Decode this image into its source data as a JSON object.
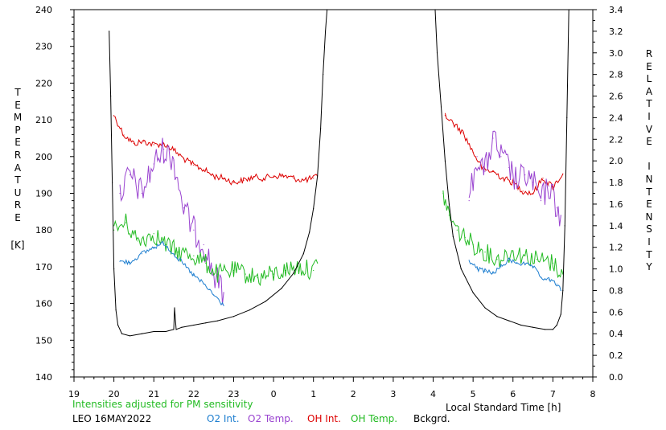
{
  "chart_data": {
    "type": "line",
    "y_left": {
      "label": "TEMPERATURE",
      "unit": "[K]",
      "range": [
        140,
        240
      ],
      "ticks": [
        "140",
        "150",
        "160",
        "170",
        "180",
        "190",
        "200",
        "210",
        "220",
        "230",
        "240"
      ]
    },
    "y_right": {
      "label": "RELATIVE INTENSITY",
      "range": [
        0.0,
        3.4
      ],
      "ticks": [
        "0.0",
        "0.2",
        "0.4",
        "0.6",
        "0.8",
        "1.0",
        "1.2",
        "1.4",
        "1.6",
        "1.8",
        "2.0",
        "2.2",
        "2.4",
        "2.6",
        "2.8",
        "3.0",
        "3.2",
        "3.4"
      ]
    },
    "x_axis": {
      "label": "Local Standard Time [h]",
      "range": [
        19,
        32
      ],
      "ticks": [
        "19",
        "20",
        "21",
        "22",
        "23",
        "0",
        "1",
        "2",
        "3",
        "4",
        "5",
        "6",
        "7",
        "8"
      ]
    },
    "note": "Intensities adjusted for PM sensitivity",
    "station": "LEO 16MAY2022",
    "legend": [
      "O2 Int.",
      "O2 Temp.",
      "OH Int.",
      "OH Temp.",
      "Bckgrd."
    ],
    "colors": {
      "o2_int": "#1f7fd0",
      "o2_temp": "#9a44d0",
      "oh_int": "#dd0000",
      "oh_temp": "#22bb22",
      "bckgrd": "#000000",
      "note": "#22bb22"
    },
    "series": [
      {
        "name": "OH Int.",
        "axis": "right",
        "segments": [
          {
            "x": [
              20.0,
              20.25,
              20.5,
              20.75,
              21.0,
              21.25,
              21.5,
              21.75,
              22.0,
              22.25,
              22.5,
              22.75,
              23.0,
              23.25,
              23.5,
              23.75,
              24.0,
              24.25,
              24.5,
              24.75,
              25.0,
              25.1
            ],
            "y": [
              2.42,
              2.24,
              2.16,
              2.18,
              2.15,
              2.16,
              2.1,
              2.02,
              1.96,
              1.92,
              1.86,
              1.84,
              1.8,
              1.82,
              1.85,
              1.84,
              1.86,
              1.86,
              1.84,
              1.82,
              1.84,
              1.86
            ]
          },
          {
            "x": [
              28.3,
              28.5,
              28.75,
              29.0,
              29.25,
              29.5,
              29.75,
              30.0,
              30.25,
              30.5,
              30.75,
              31.0,
              31.25
            ],
            "y": [
              2.42,
              2.35,
              2.26,
              2.08,
              1.92,
              1.9,
              1.84,
              1.8,
              1.72,
              1.7,
              1.84,
              1.76,
              1.88
            ]
          }
        ]
      },
      {
        "name": "O2 Temp.",
        "axis": "left",
        "segments": [
          {
            "x": [
              20.15,
              20.4,
              20.7,
              21.0,
              21.25,
              21.5,
              21.75,
              22.0,
              22.25,
              22.5,
              22.75
            ],
            "y": [
              190,
              195,
              190,
              198,
              202,
              199,
              186,
              180,
              176,
              168,
              163
            ]
          },
          {
            "x": [
              28.9,
              29.1,
              29.3,
              29.5,
              29.7,
              29.9,
              30.1,
              30.3,
              30.5,
              30.7,
              30.9,
              31.1,
              31.2
            ],
            "y": [
              188,
              200,
              196,
              205,
              200,
              197,
              193,
              195,
              193,
              188,
              192,
              186,
              184
            ]
          }
        ]
      },
      {
        "name": "OH Temp.",
        "axis": "left",
        "segments": [
          {
            "x": [
              20.0,
              20.3,
              20.6,
              21.0,
              21.3,
              21.6,
              22.0,
              22.3,
              22.6,
              23.0,
              23.3,
              23.6,
              24.0,
              24.3,
              24.6,
              25.0,
              25.1
            ],
            "y": [
              180,
              182,
              177,
              179,
              176,
              174,
              173,
              171,
              168,
              169,
              168,
              167,
              168,
              169,
              170,
              169,
              171
            ]
          },
          {
            "x": [
              28.25,
              28.4,
              28.6,
              28.8,
              29.0,
              29.3,
              29.6,
              30.0,
              30.3,
              30.6,
              31.0,
              31.25
            ],
            "y": [
              190,
              184,
              180,
              178,
              176,
              174,
              172,
              174,
              173,
              172,
              171,
              168
            ]
          }
        ]
      },
      {
        "name": "O2 Int.",
        "axis": "right",
        "segments": [
          {
            "x": [
              20.15,
              20.4,
              20.7,
              21.0,
              21.25,
              21.5,
              21.75,
              22.0,
              22.25,
              22.5,
              22.75
            ],
            "y": [
              1.07,
              1.06,
              1.14,
              1.2,
              1.24,
              1.14,
              1.04,
              0.94,
              0.86,
              0.76,
              0.66
            ]
          },
          {
            "x": [
              28.9,
              29.1,
              29.3,
              29.5,
              29.7,
              29.9,
              30.1,
              30.3,
              30.5,
              30.7,
              30.9,
              31.1,
              31.2
            ],
            "y": [
              1.08,
              1.0,
              0.98,
              0.96,
              1.02,
              1.08,
              1.06,
              1.04,
              1.02,
              0.92,
              0.9,
              0.86,
              0.8
            ]
          }
        ]
      },
      {
        "name": "Bckgrd.",
        "axis": "right",
        "segments": [
          {
            "x": [
              19.88,
              19.92,
              19.96,
              20.0,
              20.05,
              20.1,
              20.2,
              20.4,
              20.7,
              21.0,
              21.3,
              21.5,
              21.52,
              21.56,
              21.7,
              22.0,
              22.3,
              22.6,
              23.0,
              23.4,
              23.8,
              24.2,
              24.5,
              24.75,
              24.9,
              25.0,
              25.1,
              25.18,
              25.24,
              25.3,
              25.34
            ],
            "y": [
              3.2,
              2.6,
              1.8,
              1.0,
              0.62,
              0.48,
              0.4,
              0.38,
              0.4,
              0.42,
              0.42,
              0.44,
              0.64,
              0.44,
              0.46,
              0.48,
              0.5,
              0.52,
              0.56,
              0.62,
              0.7,
              0.82,
              0.96,
              1.14,
              1.34,
              1.56,
              1.86,
              2.3,
              2.8,
              3.2,
              3.42
            ]
          },
          {
            "x": [
              28.05,
              28.1,
              28.2,
              28.3,
              28.4,
              28.5,
              28.7,
              29.0,
              29.3,
              29.6,
              29.9,
              30.2,
              30.5,
              30.8,
              31.0,
              31.1,
              31.2,
              31.25,
              31.3,
              31.35,
              31.4
            ],
            "y": [
              3.42,
              3.0,
              2.5,
              2.0,
              1.6,
              1.3,
              1.0,
              0.78,
              0.64,
              0.56,
              0.52,
              0.48,
              0.46,
              0.44,
              0.44,
              0.48,
              0.58,
              0.8,
              1.4,
              2.4,
              3.42
            ]
          }
        ]
      }
    ]
  }
}
